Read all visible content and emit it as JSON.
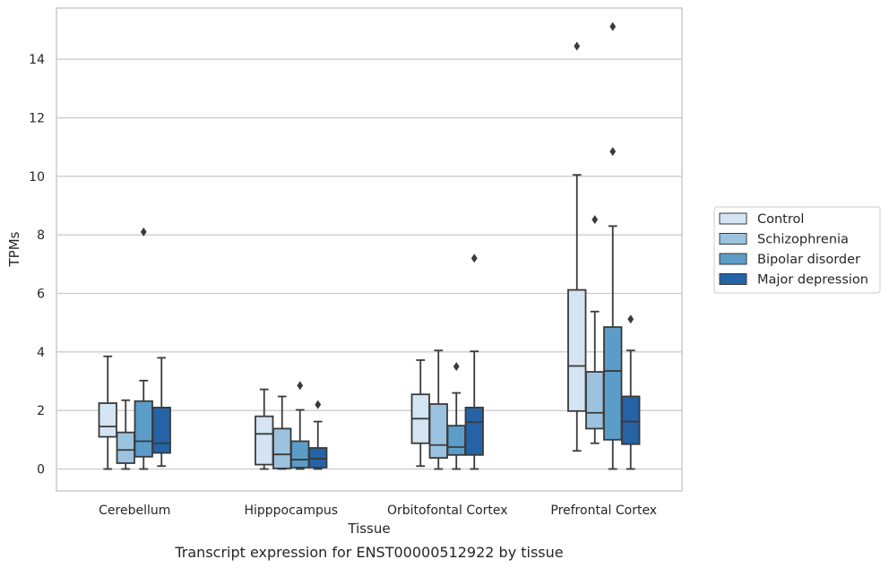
{
  "chart_data": {
    "type": "box",
    "xlabel": "Tissue",
    "ylabel": "TPMs",
    "caption": "Transcript expression for ENST00000512922 by tissue",
    "ylim": [
      -0.75,
      15.75
    ],
    "yticks": [
      0,
      2,
      4,
      6,
      8,
      10,
      12,
      14
    ],
    "grid": "horizontal",
    "legend_position": "right",
    "categories": [
      "Cerebellum",
      "Hipppocampus",
      "Orbitofontal Cortex",
      "Prefrontal Cortex"
    ],
    "series": [
      {
        "name": "Control",
        "color": "#d4e4f3",
        "boxes": [
          {
            "whislo": 0.0,
            "q1": 1.1,
            "med": 1.45,
            "q3": 2.25,
            "whishi": 3.85,
            "fliers": []
          },
          {
            "whislo": 0.0,
            "q1": 0.15,
            "med": 1.2,
            "q3": 1.8,
            "whishi": 2.72,
            "fliers": []
          },
          {
            "whislo": 0.1,
            "q1": 0.88,
            "med": 1.72,
            "q3": 2.55,
            "whishi": 3.72,
            "fliers": []
          },
          {
            "whislo": 0.62,
            "q1": 1.98,
            "med": 3.52,
            "q3": 6.12,
            "whishi": 10.05,
            "fliers": [
              14.45
            ]
          }
        ]
      },
      {
        "name": "Schizophrenia",
        "color": "#9bc3df",
        "boxes": [
          {
            "whislo": 0.0,
            "q1": 0.2,
            "med": 0.65,
            "q3": 1.25,
            "whishi": 2.35,
            "fliers": []
          },
          {
            "whislo": 0.0,
            "q1": 0.02,
            "med": 0.5,
            "q3": 1.38,
            "whishi": 2.48,
            "fliers": []
          },
          {
            "whislo": 0.0,
            "q1": 0.38,
            "med": 0.82,
            "q3": 2.22,
            "whishi": 4.05,
            "fliers": []
          },
          {
            "whislo": 0.88,
            "q1": 1.38,
            "med": 1.92,
            "q3": 3.32,
            "whishi": 5.38,
            "fliers": [
              8.52
            ]
          }
        ]
      },
      {
        "name": "Bipolar disorder",
        "color": "#5b9cc9",
        "boxes": [
          {
            "whislo": 0.0,
            "q1": 0.42,
            "med": 0.95,
            "q3": 2.32,
            "whishi": 3.02,
            "fliers": [
              8.1
            ]
          },
          {
            "whislo": 0.0,
            "q1": 0.05,
            "med": 0.32,
            "q3": 0.95,
            "whishi": 2.02,
            "fliers": [
              2.85
            ]
          },
          {
            "whislo": 0.0,
            "q1": 0.48,
            "med": 0.75,
            "q3": 1.48,
            "whishi": 2.6,
            "fliers": [
              3.5
            ]
          },
          {
            "whislo": 0.0,
            "q1": 1.0,
            "med": 3.35,
            "q3": 4.85,
            "whishi": 8.3,
            "fliers": [
              10.85,
              15.12
            ]
          }
        ]
      },
      {
        "name": "Major depression",
        "color": "#2563a6",
        "boxes": [
          {
            "whislo": 0.1,
            "q1": 0.55,
            "med": 0.88,
            "q3": 2.1,
            "whishi": 3.8,
            "fliers": []
          },
          {
            "whislo": 0.0,
            "q1": 0.05,
            "med": 0.35,
            "q3": 0.72,
            "whishi": 1.62,
            "fliers": [
              2.2
            ]
          },
          {
            "whislo": 0.0,
            "q1": 0.48,
            "med": 1.6,
            "q3": 2.1,
            "whishi": 4.02,
            "fliers": [
              7.2
            ]
          },
          {
            "whislo": 0.0,
            "q1": 0.85,
            "med": 1.62,
            "q3": 2.48,
            "whishi": 4.05,
            "fliers": [
              5.12
            ]
          }
        ]
      }
    ]
  }
}
